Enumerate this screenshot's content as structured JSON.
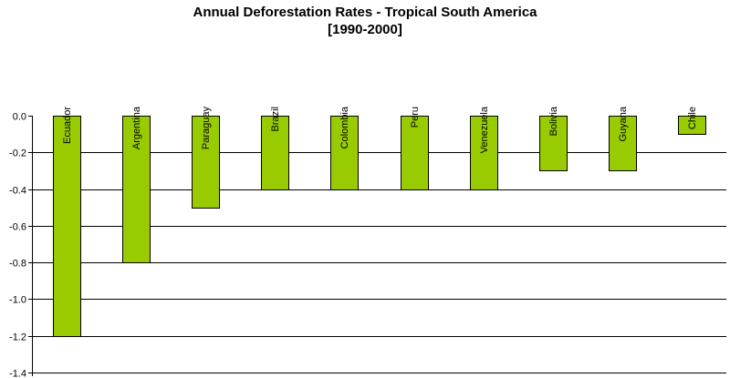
{
  "chart_data": {
    "type": "bar",
    "title": "Annual Deforestation Rates - Tropical South America",
    "subtitle": "[1990-2000]",
    "categories": [
      "Ecuador",
      "Argentina",
      "Paraguay",
      "Brazil",
      "Colombia",
      "Peru",
      "Venezuela",
      "Bolivia",
      "Guyana",
      "Chile"
    ],
    "values": [
      -1.2,
      -0.8,
      -0.5,
      -0.4,
      -0.4,
      -0.4,
      -0.4,
      -0.3,
      -0.3,
      -0.1
    ],
    "yticks": [
      0.0,
      -0.2,
      -0.4,
      -0.6,
      -0.8,
      -1.0,
      -1.2,
      -1.4
    ],
    "ytick_labels": [
      "0.0",
      "-0.2",
      "-0.4",
      "-0.6",
      "-0.8",
      "-1.0",
      "-1.2",
      "-1.4"
    ],
    "ylim": [
      -1.4,
      0.0
    ],
    "category_label_position": "top-rotated",
    "grid": true,
    "legend": false,
    "bar_color": "#99cc00",
    "bar_edge_color": "#000000",
    "xlabel": "",
    "ylabel": ""
  }
}
